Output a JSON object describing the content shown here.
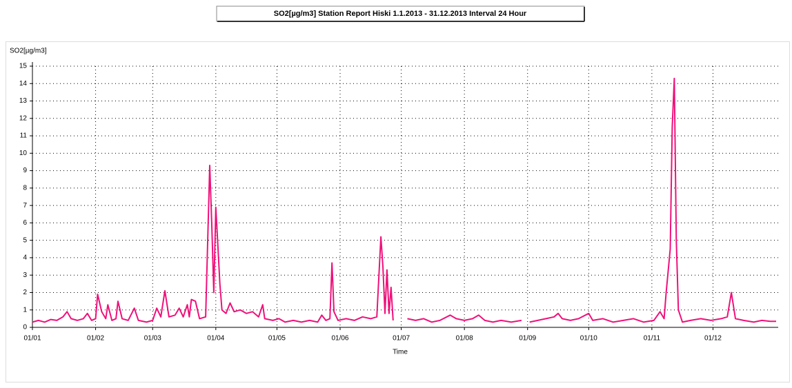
{
  "chart_data": {
    "type": "line",
    "title": "SO2[µg/m3] Station Report Hiski 1.1.2013 - 31.12.2013  Interval 24 Hour",
    "y_label": "SO2[µg/m3]",
    "x_label": "Time",
    "xlim": [
      0,
      366
    ],
    "xticks": [
      {
        "value": 0,
        "label": "01/01"
      },
      {
        "value": 31,
        "label": "01/02"
      },
      {
        "value": 59,
        "label": "01/03"
      },
      {
        "value": 90,
        "label": "01/04"
      },
      {
        "value": 120,
        "label": "01/05"
      },
      {
        "value": 151,
        "label": "01/06"
      },
      {
        "value": 181,
        "label": "01/07"
      },
      {
        "value": 212,
        "label": "01/08"
      },
      {
        "value": 243,
        "label": "01/09"
      },
      {
        "value": 273,
        "label": "01/10"
      },
      {
        "value": 304,
        "label": "01/11"
      },
      {
        "value": 334,
        "label": "01/12"
      }
    ],
    "ylim": [
      0,
      15
    ],
    "yticks": [
      0,
      1,
      2,
      3,
      4,
      5,
      6,
      7,
      8,
      9,
      10,
      11,
      12,
      13,
      14,
      15
    ],
    "grid": true,
    "series": [
      {
        "name": "SO2[µg/m3]",
        "color": "#f0107a",
        "x": [
          0,
          3,
          6,
          9,
          12,
          15,
          17,
          19,
          22,
          25,
          27,
          29,
          31,
          32,
          34,
          36,
          37,
          39,
          41,
          42,
          44,
          47,
          50,
          52,
          56,
          59,
          61,
          63,
          65,
          67,
          70,
          72,
          74,
          76,
          77,
          78,
          80,
          82,
          85,
          87,
          88,
          89,
          90,
          91,
          92,
          93,
          95,
          97,
          99,
          102,
          105,
          108,
          111,
          113,
          114,
          118,
          121,
          124,
          128,
          132,
          136,
          140,
          142,
          144,
          146,
          147,
          148,
          150,
          154,
          158,
          162,
          166,
          169,
          171,
          172,
          173,
          174,
          175,
          176,
          177,
          180,
          184,
          188,
          192,
          196,
          200,
          205,
          208,
          212,
          216,
          219,
          222,
          226,
          230,
          235,
          240,
          242,
          244,
          248,
          252,
          256,
          258,
          260,
          264,
          268,
          273,
          275,
          280,
          285,
          290,
          295,
          300,
          305,
          308,
          310,
          311,
          313,
          314,
          315,
          316,
          317,
          319,
          323,
          328,
          333,
          338,
          341,
          343,
          345,
          349,
          354,
          358,
          362,
          365
        ],
        "values": [
          0.3,
          0.4,
          0.3,
          0.45,
          0.4,
          0.6,
          0.9,
          0.5,
          0.4,
          0.5,
          0.8,
          0.4,
          0.5,
          1.9,
          0.9,
          0.5,
          1.3,
          0.4,
          0.5,
          1.5,
          0.5,
          0.4,
          1.1,
          0.4,
          0.3,
          0.4,
          1.1,
          0.6,
          2.1,
          0.6,
          0.7,
          1.1,
          0.6,
          1.3,
          0.6,
          1.6,
          1.5,
          0.5,
          0.6,
          9.3,
          6,
          2,
          6.9,
          4.7,
          2.5,
          1,
          0.8,
          1.4,
          0.9,
          1,
          0.8,
          0.9,
          0.6,
          1.3,
          0.5,
          0.4,
          0.5,
          0.3,
          0.4,
          0.3,
          0.4,
          0.3,
          0.7,
          0.4,
          0.5,
          3.7,
          0.9,
          0.4,
          0.5,
          0.4,
          0.6,
          0.5,
          0.6,
          5.2,
          3.5,
          0.8,
          3.3,
          0.8,
          2.3,
          0.4,
          null,
          0.5,
          0.4,
          0.5,
          0.3,
          0.4,
          0.7,
          0.5,
          0.4,
          0.5,
          0.7,
          0.4,
          0.3,
          0.4,
          0.3,
          0.4,
          null,
          0.3,
          0.4,
          0.5,
          0.6,
          0.8,
          0.5,
          0.4,
          0.5,
          0.8,
          0.4,
          0.5,
          0.3,
          0.4,
          0.5,
          0.3,
          0.4,
          0.9,
          0.5,
          2,
          4.5,
          11.5,
          14.3,
          5,
          1,
          0.3,
          0.4,
          0.5,
          0.4,
          0.5,
          0.6,
          2,
          0.5,
          0.4,
          0.3,
          0.4,
          0.35,
          0.35
        ]
      }
    ]
  }
}
